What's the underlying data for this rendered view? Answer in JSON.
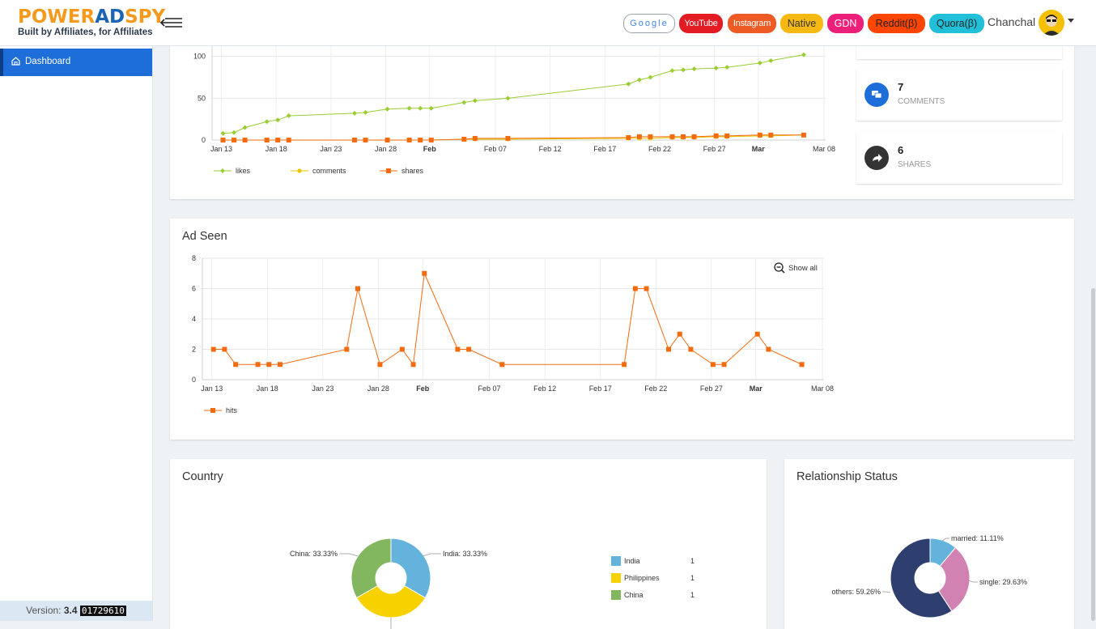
{
  "header": {
    "logo_power": "POWER",
    "logo_ad": "AD",
    "logo_spy": "SPY",
    "tagline": "Built by Affiliates, for Affiliates",
    "user_name": "Chanchal",
    "networks": [
      {
        "label": "Google",
        "bg": "#ffffff",
        "border": "#9aa3ad",
        "color": "#4285f4"
      },
      {
        "label": "YouTube",
        "bg": "#e31b23",
        "border": "#e31b23",
        "color": "#ffffff"
      },
      {
        "label": "Instagram",
        "bg": "#ee5a24",
        "border": "#ee5a24",
        "color": "#ffffff"
      },
      {
        "label": "Native",
        "bg": "#f6b913",
        "border": "#f6b913",
        "color": "#333333"
      },
      {
        "label": "GDN",
        "bg": "#ec1f7a",
        "border": "#ec1f7a",
        "color": "#ffffff"
      },
      {
        "label": "Reddit(β)",
        "bg": "#ff4500",
        "border": "#ff4500",
        "color": "#222222"
      },
      {
        "label": "Quora(β)",
        "bg": "#21bfd8",
        "border": "#21bfd8",
        "color": "#222222"
      }
    ]
  },
  "sidebar": {
    "active_item": "Dashboard",
    "version_label": "Version:",
    "version_num": "3.4",
    "build": "01729610"
  },
  "stats": [
    {
      "value": "7",
      "label": "COMMENTS",
      "icon": "comments-icon",
      "color": "#1d6ed9"
    },
    {
      "value": "6",
      "label": "SHARES",
      "icon": "share-icon",
      "color": "#333333"
    }
  ],
  "sections": {
    "ad_seen_title": "Ad Seen",
    "show_all": "Show all",
    "country_title": "Country",
    "relationship_title": "Relationship Status"
  },
  "chart_data": [
    {
      "type": "line",
      "x_ticks": [
        "Jan 13",
        "Jan 18",
        "Jan 23",
        "Jan 28",
        "Feb",
        "Feb 07",
        "Feb 12",
        "Feb 17",
        "Feb 22",
        "Feb 27",
        "Mar",
        "Mar 08"
      ],
      "bold_ticks": [
        "Feb",
        "Mar"
      ],
      "x_range": [
        12,
        68
      ],
      "y_ticks": [
        0,
        50,
        100
      ],
      "ylim": [
        0,
        120
      ],
      "legend": [
        "likes",
        "comments",
        "shares"
      ],
      "series": [
        {
          "name": "likes",
          "color": "#9acd32",
          "marker": "diamond",
          "x": [
            13,
            14,
            15,
            17,
            18,
            19,
            25,
            26,
            28,
            30,
            31,
            32,
            35,
            36,
            39,
            50,
            51,
            52,
            54,
            55,
            56,
            58,
            59,
            62,
            63,
            66
          ],
          "y": [
            8,
            9,
            15,
            22,
            24,
            29,
            32,
            33,
            37,
            38,
            38,
            38,
            45,
            47,
            50,
            67,
            72,
            75,
            83,
            84,
            85,
            86,
            87,
            92,
            95,
            102
          ]
        },
        {
          "name": "comments",
          "color": "#e8c800",
          "marker": "circle",
          "x": [
            13,
            14,
            15,
            17,
            18,
            19,
            25,
            26,
            28,
            30,
            31,
            32,
            35,
            36,
            39,
            50,
            51,
            52,
            54,
            55,
            56,
            58,
            59,
            62,
            63,
            66
          ],
          "y": [
            0,
            0,
            0,
            0,
            0,
            0,
            0,
            0,
            0,
            0,
            0,
            0,
            1,
            1,
            1,
            2,
            2,
            2,
            3,
            3,
            3,
            4,
            4,
            5,
            5,
            6
          ]
        },
        {
          "name": "shares",
          "color": "#f26b0f",
          "marker": "square",
          "x": [
            13,
            14,
            15,
            17,
            18,
            19,
            25,
            26,
            28,
            30,
            31,
            32,
            35,
            36,
            39,
            50,
            51,
            52,
            54,
            55,
            56,
            58,
            59,
            62,
            63,
            66
          ],
          "y": [
            0,
            0,
            0,
            0,
            0,
            0,
            0,
            0,
            0,
            0,
            0,
            0,
            1,
            2,
            2,
            3,
            4,
            4,
            4,
            4,
            4,
            5,
            5,
            6,
            6,
            6
          ]
        }
      ]
    },
    {
      "type": "line",
      "title": "Ad Seen",
      "x_ticks": [
        "Jan 13",
        "Jan 18",
        "Jan 23",
        "Jan 28",
        "Feb",
        "Feb 07",
        "Feb 12",
        "Feb 17",
        "Feb 22",
        "Feb 27",
        "Mar",
        "Mar 08"
      ],
      "bold_ticks": [
        "Feb",
        "Mar"
      ],
      "x_range": [
        12,
        68
      ],
      "y_ticks": [
        0,
        2,
        4,
        6,
        8
      ],
      "ylim": [
        0,
        8
      ],
      "legend": [
        "hits"
      ],
      "series": [
        {
          "name": "hits",
          "color": "#f26b0f",
          "marker": "square",
          "x": [
            13,
            14,
            15,
            17,
            18,
            19,
            25,
            26,
            28,
            30,
            31,
            32,
            35,
            36,
            39,
            50,
            51,
            52,
            54,
            55,
            56,
            58,
            59,
            62,
            63,
            66
          ],
          "y": [
            2,
            2,
            1,
            1,
            1,
            1,
            2,
            6,
            1,
            2,
            1,
            7,
            2,
            2,
            1,
            1,
            6,
            6,
            2,
            3,
            2,
            1,
            1,
            3,
            2,
            1
          ]
        }
      ]
    },
    {
      "type": "pie",
      "title": "Country",
      "slices": [
        {
          "label": "India",
          "value": 1,
          "percent": "33.33%",
          "color": "#63b3dc"
        },
        {
          "label": "Philippines",
          "value": 1,
          "percent": "33.33%",
          "color": "#f8d200"
        },
        {
          "label": "China",
          "value": 1,
          "percent": "33.33%",
          "color": "#82b760"
        }
      ],
      "outside_labels": [
        "India: 33.33%",
        "China: 33.33%"
      ],
      "legend_counts": [
        "1",
        "1",
        "1"
      ]
    },
    {
      "type": "pie",
      "title": "Relationship Status",
      "slices": [
        {
          "label": "married",
          "percent": 11.11,
          "color": "#63b3dc"
        },
        {
          "label": "single",
          "percent": 29.63,
          "color": "#d282b2"
        },
        {
          "label": "others",
          "percent": 59.26,
          "color": "#2e3e6e"
        }
      ],
      "outside_labels": [
        "married: 11.11%",
        "single: 29.63%",
        "others: 59.26%"
      ]
    }
  ]
}
